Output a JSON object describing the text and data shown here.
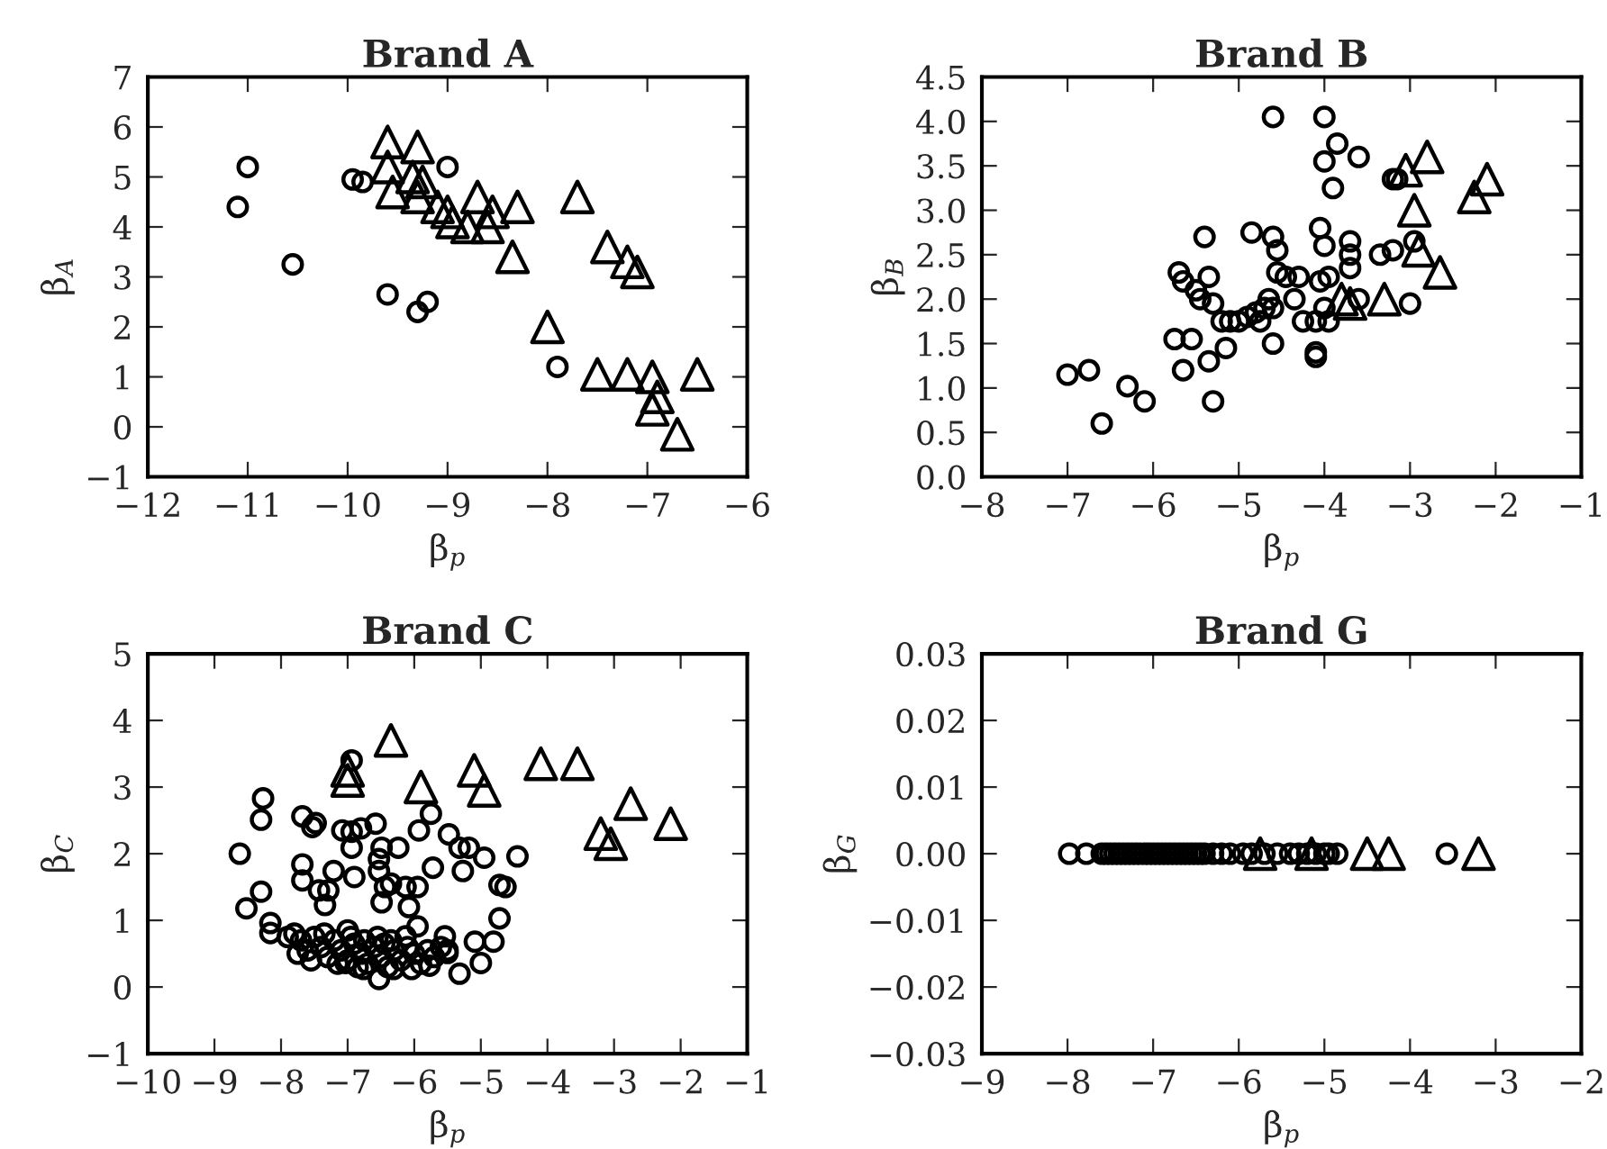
{
  "chart_data": [
    {
      "type": "scatter",
      "title": "Brand A",
      "xlabel": "β$_{p}$",
      "ylabel": "β$_{A}$",
      "xlim": [
        -12,
        -6
      ],
      "ylim": [
        -1,
        7
      ],
      "xticks": [
        {
          "value": -12,
          "label": "−12"
        },
        {
          "value": -11,
          "label": "−11"
        },
        {
          "value": -10,
          "label": "−10"
        },
        {
          "value": -9,
          "label": "−9"
        },
        {
          "value": -8,
          "label": "−8"
        },
        {
          "value": -7,
          "label": "−7"
        },
        {
          "value": -6,
          "label": "−6"
        }
      ],
      "yticks": [
        {
          "value": -1,
          "label": "−1"
        },
        0,
        1,
        2,
        3,
        4,
        5,
        6,
        7
      ],
      "series": [
        {
          "color": "#000000",
          "marker": "circle",
          "x": [
            -11.1,
            -11.0,
            -10.55,
            -9.95,
            -9.85,
            -9.6,
            -9.3,
            -9.2,
            -9.0,
            -7.9
          ],
          "values": [
            4.4,
            5.2,
            3.25,
            4.95,
            4.9,
            2.65,
            2.3,
            2.5,
            5.2,
            1.2
          ]
        },
        {
          "color": "#000000",
          "marker": "triangle",
          "x": [
            -9.6,
            -9.3,
            -9.6,
            -9.35,
            -9.25,
            -9.55,
            -9.3,
            -9.1,
            -9.0,
            -8.95,
            -8.8,
            -8.7,
            -8.6,
            -8.55,
            -8.3,
            -8.35,
            -7.7,
            -7.4,
            -7.2,
            -7.1,
            -8.0,
            -7.5,
            -7.2,
            -6.95,
            -6.9,
            -6.95,
            -6.5,
            -6.7
          ],
          "values": [
            5.7,
            5.6,
            5.2,
            5.0,
            4.9,
            4.7,
            4.6,
            4.4,
            4.3,
            4.1,
            4.0,
            4.6,
            4.0,
            4.3,
            4.4,
            3.4,
            4.6,
            3.6,
            3.3,
            3.1,
            2.0,
            1.05,
            1.05,
            1.0,
            0.6,
            0.35,
            1.05,
            -0.15
          ]
        }
      ]
    },
    {
      "type": "scatter",
      "title": "Brand B",
      "xlabel": "β$_{p}$",
      "ylabel": "β$_{B}$",
      "xlim": [
        -8,
        -1
      ],
      "ylim": [
        0,
        4.5
      ],
      "xticks": [
        {
          "value": -8,
          "label": "−8"
        },
        {
          "value": -7,
          "label": "−7"
        },
        {
          "value": -6,
          "label": "−6"
        },
        {
          "value": -5,
          "label": "−5"
        },
        {
          "value": -4,
          "label": "−4"
        },
        {
          "value": -3,
          "label": "−3"
        },
        {
          "value": -2,
          "label": "−2"
        },
        {
          "value": -1,
          "label": "−1"
        }
      ],
      "yticks": [
        {
          "value": 0,
          "label": "0.0"
        },
        0.5,
        {
          "value": 1,
          "label": "1.0"
        },
        1.5,
        {
          "value": 2,
          "label": "2.0"
        },
        2.5,
        {
          "value": 3,
          "label": "3.0"
        },
        3.5,
        {
          "value": 4,
          "label": "4.0"
        },
        4.5
      ],
      "series": [
        {
          "color": "#000000",
          "marker": "circle",
          "x": [
            -7.0,
            -6.75,
            -6.6,
            -6.3,
            -6.1,
            -5.75,
            -5.65,
            -5.55,
            -5.35,
            -5.3,
            -5.15,
            -5.7,
            -5.65,
            -5.5,
            -5.45,
            -5.35,
            -5.3,
            -5.4,
            -5.2,
            -5.1,
            -5.0,
            -4.9,
            -4.8,
            -4.75,
            -4.7,
            -4.65,
            -4.6,
            -4.85,
            -4.6,
            -4.55,
            -4.55,
            -4.45,
            -4.3,
            -4.35,
            -4.25,
            -4.6,
            -4.1,
            -4.1,
            -4.1,
            -4.0,
            -3.95,
            -4.05,
            -3.95,
            -4.05,
            -4.0,
            -3.7,
            -3.7,
            -3.7,
            -3.6,
            -3.35,
            -3.2,
            -3.0,
            -4.6,
            -4.0,
            -3.85,
            -4.0,
            -3.6,
            -3.9,
            -3.2,
            -3.15,
            -2.95
          ],
          "values": [
            1.15,
            1.2,
            0.6,
            1.02,
            0.85,
            1.55,
            1.2,
            1.55,
            1.3,
            0.85,
            1.45,
            2.3,
            2.2,
            2.1,
            2.0,
            2.25,
            1.95,
            2.7,
            1.75,
            1.75,
            1.75,
            1.8,
            1.85,
            1.75,
            1.9,
            2.0,
            1.9,
            2.75,
            2.7,
            2.55,
            2.3,
            2.25,
            2.25,
            2.0,
            1.75,
            1.5,
            1.4,
            1.35,
            1.75,
            1.9,
            1.75,
            2.2,
            2.25,
            2.8,
            2.6,
            2.65,
            2.5,
            2.35,
            2.0,
            2.5,
            2.55,
            1.95,
            4.05,
            4.05,
            3.75,
            3.55,
            3.6,
            3.25,
            3.35,
            3.35,
            2.65
          ]
        },
        {
          "color": "#000000",
          "marker": "triangle",
          "x": [
            -3.05,
            -2.8,
            -2.95,
            -2.9,
            -2.1,
            -2.25,
            -2.65,
            -3.3,
            -3.8,
            -3.7
          ],
          "values": [
            3.45,
            3.6,
            3.0,
            2.55,
            3.35,
            3.15,
            2.3,
            2.0,
            2.0,
            1.95
          ]
        }
      ]
    },
    {
      "type": "scatter",
      "title": "Brand C",
      "xlabel": "β$_{p}$",
      "ylabel": "β$_{C}$",
      "xlim": [
        -10,
        -1
      ],
      "ylim": [
        -1,
        5
      ],
      "xticks": [
        {
          "value": -10,
          "label": "−10"
        },
        {
          "value": -9,
          "label": "−9"
        },
        {
          "value": -8,
          "label": "−8"
        },
        {
          "value": -7,
          "label": "−7"
        },
        {
          "value": -6,
          "label": "−6"
        },
        {
          "value": -5,
          "label": "−5"
        },
        {
          "value": -4,
          "label": "−4"
        },
        {
          "value": -3,
          "label": "−3"
        },
        {
          "value": -2,
          "label": "−2"
        },
        {
          "value": -1,
          "label": "−1"
        }
      ],
      "yticks": [
        {
          "value": -1,
          "label": "−1"
        },
        0,
        1,
        2,
        3,
        4,
        5
      ],
      "series": [
        {
          "color": "#000000",
          "marker": "circle",
          "x": [
            -8.62,
            -8.27,
            -8.3,
            -8.52,
            -8.3,
            -8.16,
            -8.16,
            -7.68,
            -7.53,
            -7.48,
            -7.68,
            -7.68,
            -7.43,
            -7.34,
            -7.29,
            -7.21,
            -7.08,
            -6.94,
            -6.94,
            -6.9,
            -6.94,
            -6.8,
            -6.58,
            -6.53,
            -6.49,
            -6.53,
            -6.44,
            -6.49,
            -6.24,
            -6.35,
            -6.13,
            -5.95,
            -6.08,
            -5.95,
            -6.13,
            -5.93,
            -5.75,
            -5.72,
            -5.48,
            -5.32,
            -5.18,
            -5.27,
            -4.95,
            -4.72,
            -4.63,
            -4.45,
            -4.72,
            -4.81,
            -5.09,
            -5.0,
            -5.32,
            -5.54,
            -5.5,
            -5.77,
            -6.04,
            -6.31,
            -6.53,
            -6.76,
            -7.03,
            -7.8,
            -7.7,
            -7.6,
            -7.5,
            -7.4,
            -7.3,
            -7.2,
            -7.1,
            -7.0,
            -6.9,
            -6.8,
            -6.7,
            -6.6,
            -6.5,
            -6.4,
            -6.3,
            -6.2,
            -6.1,
            -6.0,
            -5.9,
            -5.8,
            -5.7,
            -5.6,
            -7.75,
            -7.55,
            -7.35,
            -7.15,
            -6.95,
            -6.75,
            -6.55,
            -6.35,
            -5.5,
            -7.9,
            -7.0,
            -6.85,
            -6.45
          ],
          "values": [
            2.0,
            2.83,
            2.51,
            1.18,
            1.43,
            0.96,
            0.81,
            2.56,
            2.4,
            2.46,
            1.84,
            1.6,
            1.45,
            1.23,
            1.45,
            1.74,
            2.35,
            3.4,
            2.33,
            1.65,
            2.09,
            2.38,
            2.45,
            1.92,
            2.09,
            1.74,
            1.5,
            1.27,
            2.09,
            1.55,
            1.5,
            1.5,
            1.2,
            0.91,
            0.76,
            2.35,
            2.6,
            1.79,
            2.29,
            2.09,
            2.09,
            1.74,
            1.94,
            1.53,
            1.5,
            1.96,
            1.03,
            0.68,
            0.68,
            0.36,
            0.2,
            0.76,
            0.51,
            0.32,
            0.27,
            0.27,
            0.12,
            0.27,
            0.36,
            0.8,
            0.7,
            0.55,
            0.75,
            0.6,
            0.45,
            0.7,
            0.55,
            0.4,
            0.65,
            0.5,
            0.35,
            0.6,
            0.45,
            0.3,
            0.55,
            0.4,
            0.6,
            0.5,
            0.35,
            0.55,
            0.45,
            0.6,
            0.5,
            0.4,
            0.8,
            0.35,
            0.75,
            0.7,
            0.75,
            0.7,
            0.55,
            0.75,
            0.85,
            0.3,
            0.65
          ]
        },
        {
          "color": "#000000",
          "marker": "triangle",
          "x": [
            -6.35,
            -7.0,
            -7.0,
            -5.9,
            -5.1,
            -4.95,
            -4.1,
            -3.55,
            -3.2,
            -3.05,
            -2.75,
            -2.15
          ],
          "values": [
            3.7,
            3.25,
            3.1,
            3.0,
            3.25,
            2.95,
            3.35,
            3.35,
            2.3,
            2.15,
            2.75,
            2.45
          ]
        }
      ]
    },
    {
      "type": "scatter",
      "title": "Brand G",
      "xlabel": "β$_{p}$",
      "ylabel": "β$_{G}$",
      "xlim": [
        -9,
        -2
      ],
      "ylim": [
        -0.03,
        0.03
      ],
      "xticks": [
        {
          "value": -9,
          "label": "−9"
        },
        {
          "value": -8,
          "label": "−8"
        },
        {
          "value": -7,
          "label": "−7"
        },
        {
          "value": -6,
          "label": "−6"
        },
        {
          "value": -5,
          "label": "−5"
        },
        {
          "value": -4,
          "label": "−4"
        },
        {
          "value": -3,
          "label": "−3"
        },
        {
          "value": -2,
          "label": "−2"
        }
      ],
      "yticks": [
        {
          "value": -0.03,
          "label": "−0.03"
        },
        {
          "value": -0.02,
          "label": "−0.02"
        },
        {
          "value": -0.01,
          "label": "−0.01"
        },
        {
          "value": 0,
          "label": "0.00"
        },
        {
          "value": 0.01,
          "label": "0.01"
        },
        {
          "value": 0.02,
          "label": "0.02"
        },
        {
          "value": 0.03,
          "label": "0.03"
        }
      ],
      "series": [
        {
          "color": "#000000",
          "marker": "circle",
          "x": [
            -7.98,
            -7.78,
            -7.6,
            -7.55,
            -7.5,
            -7.45,
            -7.4,
            -7.35,
            -7.3,
            -7.25,
            -7.2,
            -7.15,
            -7.1,
            -7.05,
            -7.0,
            -6.95,
            -6.9,
            -6.85,
            -6.8,
            -6.75,
            -6.7,
            -6.65,
            -6.6,
            -6.55,
            -6.5,
            -6.45,
            -6.4,
            -6.3,
            -6.2,
            -6.1,
            -5.95,
            -5.85,
            -5.7,
            -5.55,
            -5.4,
            -5.3,
            -5.2,
            -5.1,
            -5.0,
            -4.95,
            -4.85,
            -3.57
          ],
          "values": [
            0,
            0,
            0,
            0,
            0,
            0,
            0,
            0,
            0,
            0,
            0,
            0,
            0,
            0,
            0,
            0,
            0,
            0,
            0,
            0,
            0,
            0,
            0,
            0,
            0,
            0,
            0,
            0,
            0,
            0,
            0,
            0,
            0,
            0,
            0,
            0,
            0,
            0,
            0,
            0,
            0,
            0
          ]
        },
        {
          "color": "#000000",
          "marker": "triangle",
          "x": [
            -5.75,
            -5.15,
            -4.5,
            -4.25,
            -3.2
          ],
          "values": [
            0,
            0,
            0,
            0,
            0
          ]
        }
      ]
    }
  ]
}
